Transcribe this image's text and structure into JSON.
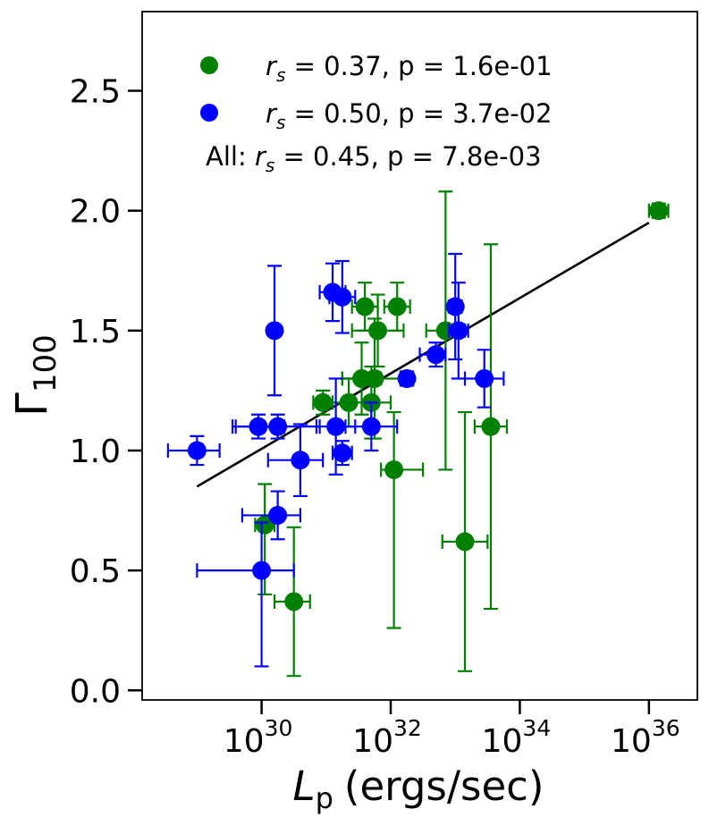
{
  "chart_data": {
    "type": "scatter",
    "title": "",
    "xlabel": {
      "symbol": "L",
      "sub": "p",
      "units": "(ergs/sec)"
    },
    "ylabel": {
      "symbol": "Γ",
      "sub": "100"
    },
    "xscale": "log",
    "xlim_log10": [
      28.15,
      36.75
    ],
    "ylim": [
      -0.04,
      2.83
    ],
    "x_ticks": [
      {
        "log10": 30,
        "base": "10",
        "exp": "30"
      },
      {
        "log10": 32,
        "base": "10",
        "exp": "32"
      },
      {
        "log10": 34,
        "base": "10",
        "exp": "34"
      },
      {
        "log10": 36,
        "base": "10",
        "exp": "36"
      }
    ],
    "y_ticks": [
      {
        "value": 0.0,
        "label": "0.0"
      },
      {
        "value": 0.5,
        "label": "0.5"
      },
      {
        "value": 1.0,
        "label": "1.0"
      },
      {
        "value": 1.5,
        "label": "1.5"
      },
      {
        "value": 2.0,
        "label": "2.0"
      },
      {
        "value": 2.5,
        "label": "2.5"
      }
    ],
    "legend": {
      "placement": "top-center",
      "entries": [
        {
          "series": "green",
          "prefix": "",
          "stat": "s",
          "text": " = 0.37, p = 1.6e-01"
        },
        {
          "series": "blue",
          "prefix": "",
          "stat": "s",
          "text": " = 0.50, p = 3.7e-02"
        },
        {
          "series": "",
          "prefix": "All: ",
          "stat": "s",
          "text": " = 0.45, p = 7.8e-03"
        }
      ]
    },
    "fit_line": {
      "x_log10": [
        29.0,
        36.0
      ],
      "y": [
        0.85,
        1.95
      ]
    },
    "series": [
      {
        "name": "green",
        "color": "#008000",
        "points": [
          {
            "x": 30.05,
            "y": 0.69,
            "x_err": [
              0.15,
              0.15
            ],
            "y_err": [
              0.29,
              0.17
            ]
          },
          {
            "x": 30.5,
            "y": 0.37,
            "x_err": [
              0.3,
              0.25
            ],
            "y_err": [
              0.31,
              0.31
            ]
          },
          {
            "x": 30.95,
            "y": 1.2,
            "x_err": [
              0.15,
              0.15
            ],
            "y_err": [
              0.05,
              0.05
            ]
          },
          {
            "x": 31.35,
            "y": 1.2,
            "x_err": [
              0.35,
              0.4
            ],
            "y_err": [
              0.1,
              0.1
            ]
          },
          {
            "x": 31.55,
            "y": 1.3,
            "x_err": [
              0.3,
              0.3
            ],
            "y_err": [
              0.15,
              0.15
            ]
          },
          {
            "x": 31.6,
            "y": 1.6,
            "x_err": [
              0.2,
              0.2
            ],
            "y_err": [
              0.1,
              0.1
            ]
          },
          {
            "x": 31.7,
            "y": 1.2,
            "x_err": [
              0.3,
              0.3
            ],
            "y_err": [
              0.15,
              0.15
            ]
          },
          {
            "x": 31.75,
            "y": 1.3,
            "x_err": [
              0.5,
              0.5
            ],
            "y_err": [
              0.25,
              0.25
            ]
          },
          {
            "x": 31.8,
            "y": 1.5,
            "x_err": [
              0.4,
              0.4
            ],
            "y_err": [
              0.15,
              0.15
            ]
          },
          {
            "x": 32.05,
            "y": 0.92,
            "x_err": [
              0.2,
              0.45
            ],
            "y_err": [
              0.66,
              0.24
            ]
          },
          {
            "x": 32.1,
            "y": 1.6,
            "x_err": [
              0.2,
              0.2
            ],
            "y_err": [
              0.1,
              0.1
            ]
          },
          {
            "x": 32.85,
            "y": 1.5,
            "x_err": [
              0.3,
              0.3
            ],
            "y_err": [
              0.58,
              0.58
            ]
          },
          {
            "x": 33.15,
            "y": 0.62,
            "x_err": [
              0.35,
              0.35
            ],
            "y_err": [
              0.54,
              0.54
            ]
          },
          {
            "x": 33.55,
            "y": 1.1,
            "x_err": [
              0.25,
              0.25
            ],
            "y_err": [
              0.76,
              0.76
            ]
          },
          {
            "x": 36.15,
            "y": 2.0,
            "x_err": [
              0.15,
              0.15
            ],
            "y_err": [
              0.03,
              0.03
            ]
          }
        ]
      },
      {
        "name": "blue",
        "color": "#0000ff",
        "points": [
          {
            "x": 29.0,
            "y": 1.0,
            "x_err": [
              0.45,
              0.35
            ],
            "y_err": [
              0.06,
              0.06
            ]
          },
          {
            "x": 29.95,
            "y": 1.1,
            "x_err": [
              0.4,
              0.4
            ],
            "y_err": [
              0.05,
              0.05
            ]
          },
          {
            "x": 30.0,
            "y": 0.5,
            "x_err": [
              1.0,
              0.5
            ],
            "y_err": [
              0.4,
              0.2
            ]
          },
          {
            "x": 30.2,
            "y": 1.5,
            "x_err": [
              0.05,
              0.05
            ],
            "y_err": [
              0.27,
              0.27
            ]
          },
          {
            "x": 30.25,
            "y": 1.1,
            "x_err": [
              0.65,
              0.65
            ],
            "y_err": [
              0.05,
              0.05
            ]
          },
          {
            "x": 30.25,
            "y": 0.73,
            "x_err": [
              0.55,
              0.35
            ],
            "y_err": [
              0.1,
              0.1
            ]
          },
          {
            "x": 30.6,
            "y": 0.96,
            "x_err": [
              0.5,
              0.35
            ],
            "y_err": [
              0.15,
              0.15
            ]
          },
          {
            "x": 31.1,
            "y": 1.66,
            "x_err": [
              0.2,
              0.2
            ],
            "y_err": [
              0.12,
              0.12
            ]
          },
          {
            "x": 31.15,
            "y": 1.1,
            "x_err": [
              0.3,
              0.3
            ],
            "y_err": [
              0.2,
              0.2
            ]
          },
          {
            "x": 31.25,
            "y": 0.99,
            "x_err": [
              0.15,
              0.15
            ],
            "y_err": [
              0.05,
              0.05
            ]
          },
          {
            "x": 31.25,
            "y": 1.64,
            "x_err": [
              0.2,
              0.2
            ],
            "y_err": [
              0.15,
              0.15
            ]
          },
          {
            "x": 31.7,
            "y": 1.1,
            "x_err": [
              0.4,
              0.4
            ],
            "y_err": [
              0.1,
              0.1
            ]
          },
          {
            "x": 32.25,
            "y": 1.3,
            "x_err": [
              0.1,
              0.1
            ],
            "y_err": [
              0.03,
              0.03
            ]
          },
          {
            "x": 32.7,
            "y": 1.4,
            "x_err": [
              0.25,
              0.15
            ],
            "y_err": [
              0.05,
              0.05
            ]
          },
          {
            "x": 33.0,
            "y": 1.6,
            "x_err": [
              0.1,
              0.1
            ],
            "y_err": [
              0.22,
              0.22
            ]
          },
          {
            "x": 33.05,
            "y": 1.5,
            "x_err": [
              0.15,
              0.15
            ],
            "y_err": [
              0.2,
              0.2
            ]
          },
          {
            "x": 33.45,
            "y": 1.3,
            "x_err": [
              0.3,
              0.3
            ],
            "y_err": [
              0.12,
              0.12
            ]
          }
        ]
      }
    ]
  }
}
